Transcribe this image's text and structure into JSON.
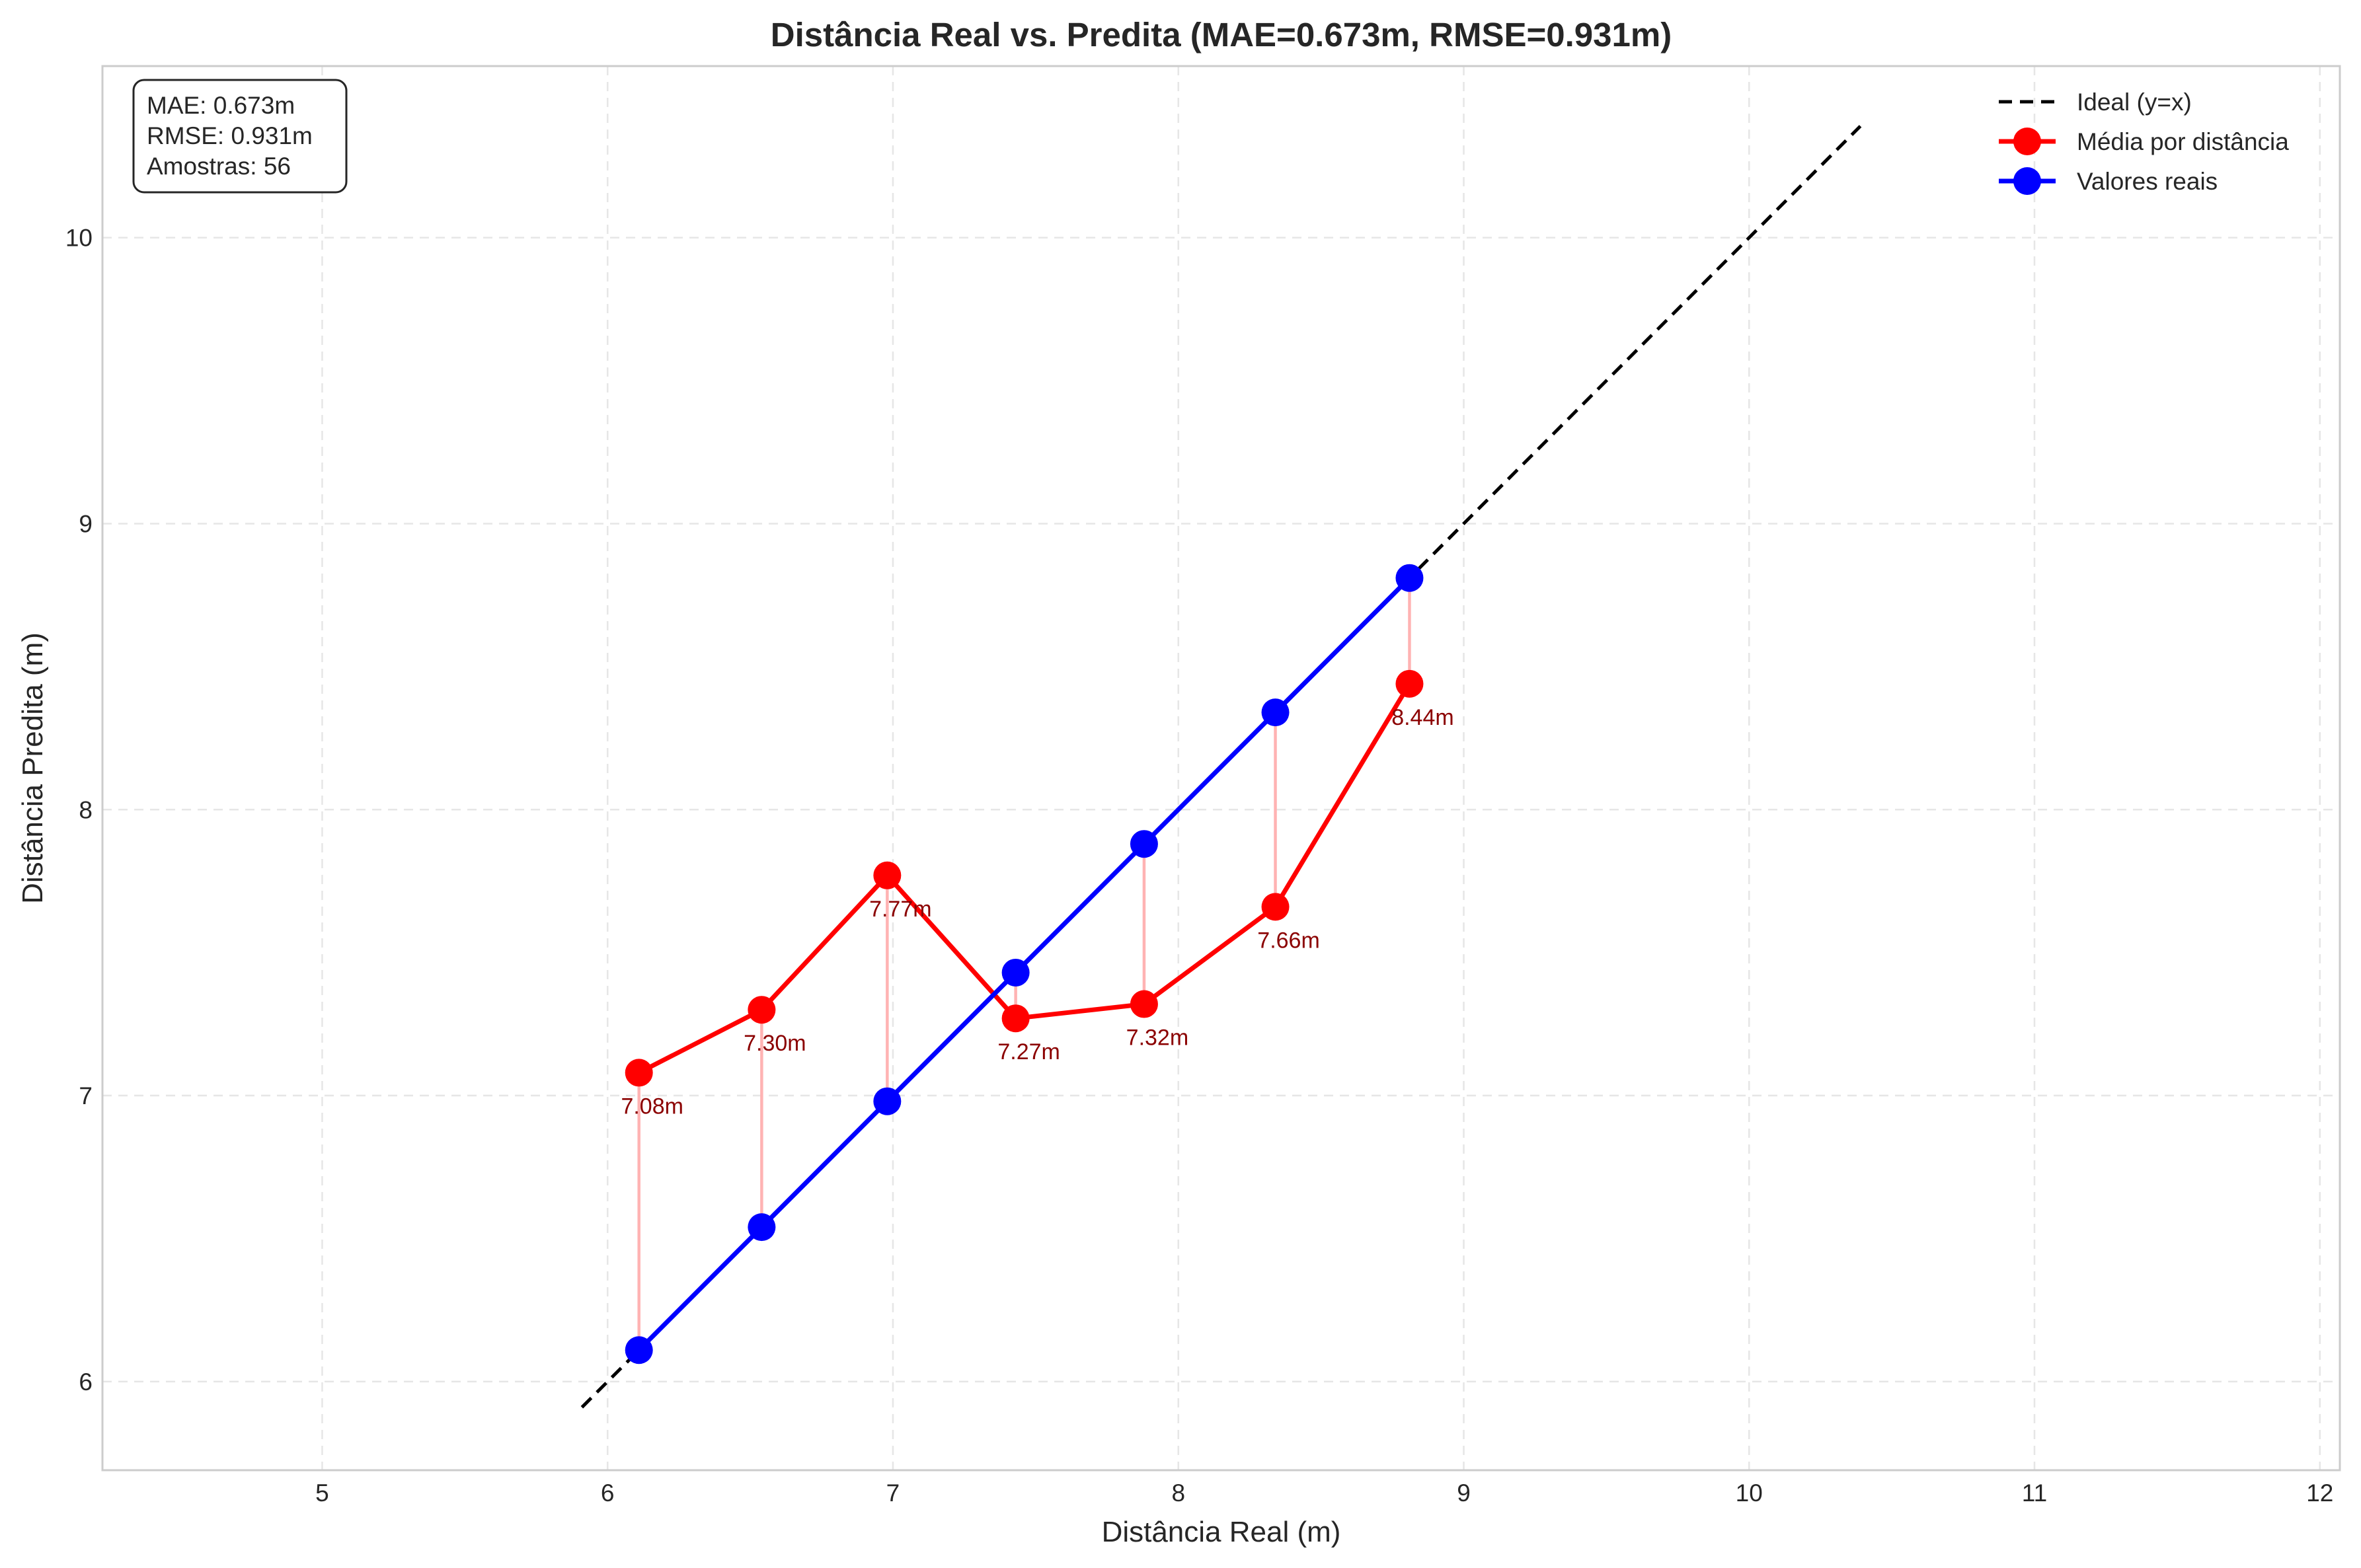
{
  "chart_data": {
    "type": "line",
    "title": "Distância Real vs. Predita (MAE=0.673m, RMSE=0.931m)",
    "xlabel": "Distância Real (m)",
    "ylabel": "Distância Predita (m)",
    "xlim": [
      4.23,
      12.07
    ],
    "ylim": [
      5.69,
      10.6
    ],
    "xticks": [
      5,
      6,
      7,
      8,
      9,
      10,
      11,
      12
    ],
    "yticks": [
      6,
      7,
      8,
      9,
      10
    ],
    "grid": true,
    "legend_position": "top-right",
    "stats_box": {
      "lines": [
        "MAE: 0.673m",
        "RMSE: 0.931m",
        "Amostras: 56"
      ]
    },
    "series": [
      {
        "name": "Ideal (y=x)",
        "style": "dashed",
        "color": "#000000",
        "x": [
          5.91,
          10.39
        ],
        "y": [
          5.91,
          10.39
        ]
      },
      {
        "name": "Média por distância",
        "style": "line-marker",
        "color": "#ff0000",
        "x": [
          6.11,
          6.54,
          6.98,
          7.43,
          7.88,
          8.34,
          8.81
        ],
        "y": [
          7.08,
          7.3,
          7.77,
          7.27,
          7.32,
          7.66,
          8.44
        ],
        "labels": [
          "7.08m",
          "7.30m",
          "7.77m",
          "7.27m",
          "7.32m",
          "7.66m",
          "8.44m"
        ]
      },
      {
        "name": "Valores reais",
        "style": "line-marker",
        "color": "#0000ff",
        "x": [
          6.11,
          6.54,
          6.98,
          7.43,
          7.88,
          8.34,
          8.81
        ],
        "y": [
          6.11,
          6.54,
          6.98,
          7.43,
          7.88,
          8.34,
          8.81
        ]
      }
    ],
    "connector_color": "#ffb3b3",
    "annotation_color": "#8b0000"
  }
}
